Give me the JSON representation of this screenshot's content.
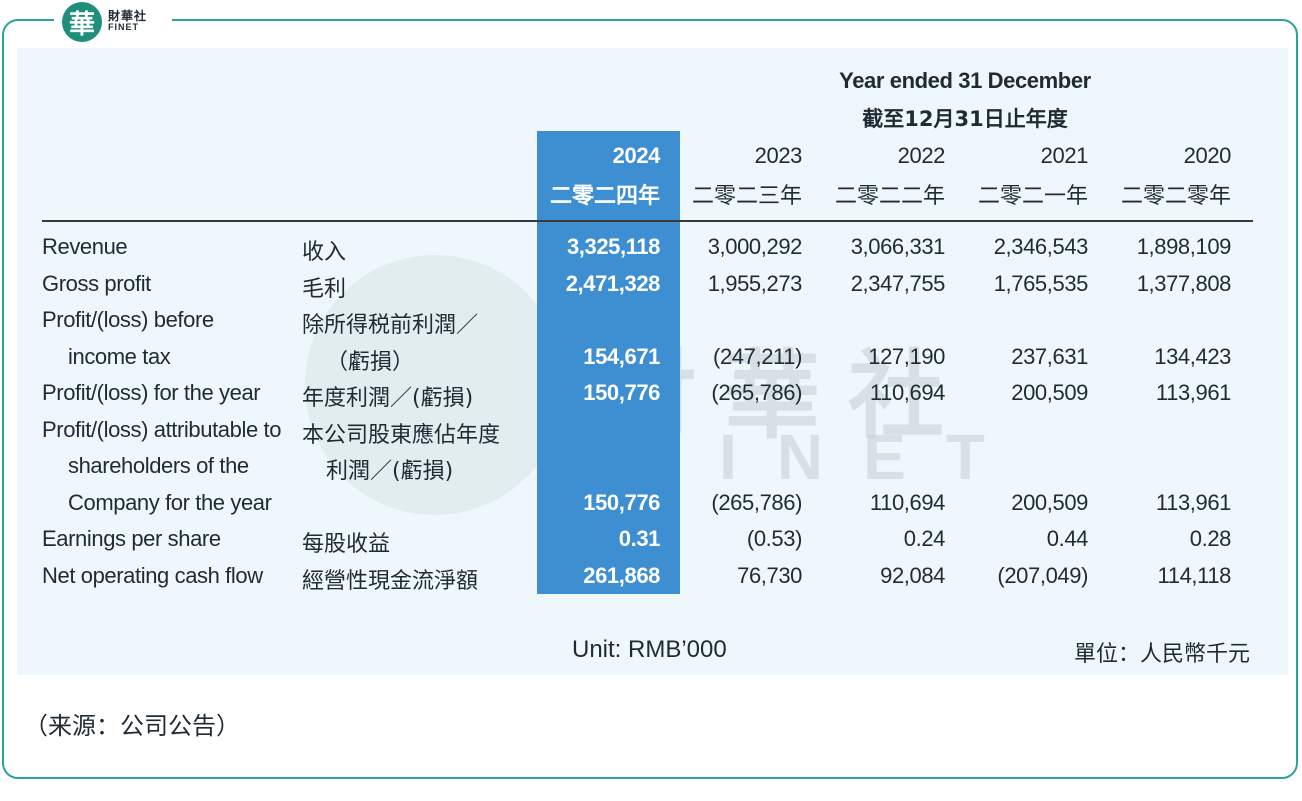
{
  "logo": {
    "glyph": "華",
    "cn": "財華社",
    "en": "FINET"
  },
  "watermark": {
    "cn": "財華社",
    "en": "FINET"
  },
  "header": {
    "title_en": "Year ended 31 December",
    "title_cn": "截至12月31日止年度"
  },
  "columns": [
    {
      "year": "2024",
      "cn": "二零二四年",
      "highlight": true
    },
    {
      "year": "2023",
      "cn": "二零二三年"
    },
    {
      "year": "2022",
      "cn": "二零二二年"
    },
    {
      "year": "2021",
      "cn": "二零二一年"
    },
    {
      "year": "2020",
      "cn": "二零二零年"
    }
  ],
  "rows": [
    {
      "en": [
        "Revenue"
      ],
      "cn": [
        "收入"
      ],
      "values": [
        "3,325,118",
        "3,000,292",
        "3,066,331",
        "2,346,543",
        "1,898,109"
      ]
    },
    {
      "en": [
        "Gross profit"
      ],
      "cn": [
        "毛利"
      ],
      "values": [
        "2,471,328",
        "1,955,273",
        "2,347,755",
        "1,765,535",
        "1,377,808"
      ]
    },
    {
      "en": [
        "Profit/(loss) before",
        "income tax"
      ],
      "cn": [
        "除所得税前利潤／",
        "（虧損）"
      ],
      "values": [
        "154,671",
        "(247,211)",
        "127,190",
        "237,631",
        "134,423"
      ]
    },
    {
      "en": [
        "Profit/(loss) for the year"
      ],
      "cn": [
        "年度利潤／(虧損)"
      ],
      "values": [
        "150,776",
        "(265,786)",
        "110,694",
        "200,509",
        "113,961"
      ]
    },
    {
      "en": [
        "Profit/(loss) attributable to",
        "shareholders of the",
        "Company for the year"
      ],
      "cn": [
        "本公司股東應佔年度",
        "利潤／(虧損)"
      ],
      "values": [
        "150,776",
        "(265,786)",
        "110,694",
        "200,509",
        "113,961"
      ]
    },
    {
      "en": [
        "Earnings per share"
      ],
      "cn": [
        "每股收益"
      ],
      "values": [
        "0.31",
        "(0.53)",
        "0.24",
        "0.44",
        "0.28"
      ]
    },
    {
      "en": [
        "Net operating cash flow"
      ],
      "cn": [
        "經營性現金流淨額"
      ],
      "values": [
        "261,868",
        "76,730",
        "92,084",
        "(207,049)",
        "114,118"
      ]
    }
  ],
  "unit": {
    "en": "Unit: RMB’000",
    "cn": "單位：人民幣千元"
  },
  "source": "（来源：公司公告）",
  "colors": {
    "frame": "#2aa39a",
    "panel": "#eef7fb",
    "highlight": "#3d8fd1",
    "logo": "#1f8f79"
  }
}
